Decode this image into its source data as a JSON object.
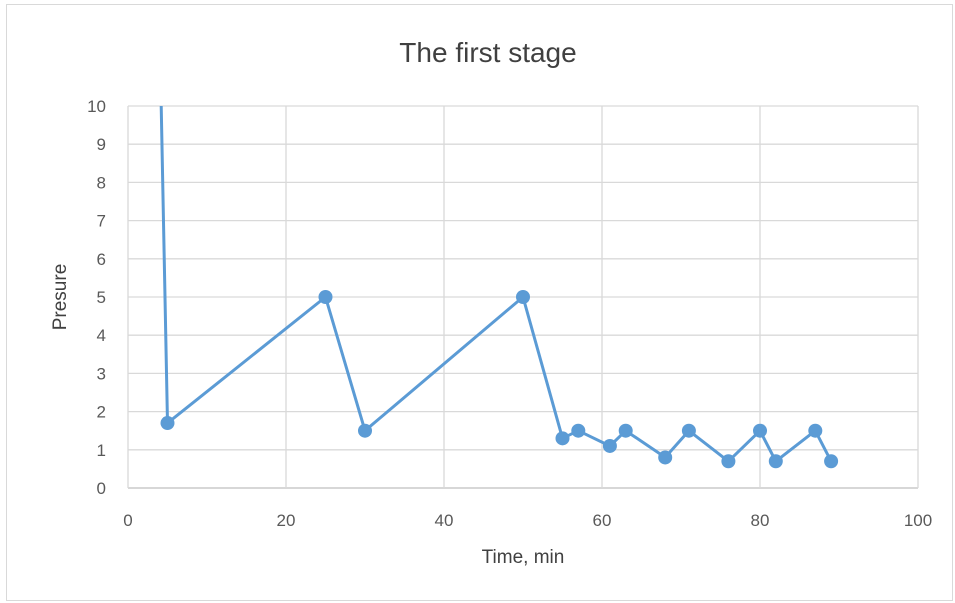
{
  "chart_data": {
    "type": "line",
    "title": "The first stage",
    "xlabel": "Time, min",
    "ylabel": "Presure",
    "xlim": [
      0,
      100
    ],
    "ylim": [
      0,
      10
    ],
    "xticks": [
      "0",
      "20",
      "40",
      "60",
      "80",
      "100"
    ],
    "yticks": [
      "0",
      "1",
      "2",
      "3",
      "4",
      "5",
      "6",
      "7",
      "8",
      "9",
      "10"
    ],
    "grid": true,
    "legend": "none",
    "series_color": "#5b9bd5",
    "line_start": {
      "x": 4.2,
      "y": 10
    },
    "series": [
      {
        "x": [
          5,
          25,
          30,
          50,
          55,
          57,
          61,
          63,
          68,
          71,
          76,
          80,
          82,
          87,
          89
        ],
        "y": [
          1.7,
          5,
          1.5,
          5,
          1.3,
          1.5,
          1.1,
          1.5,
          0.8,
          1.5,
          0.7,
          1.5,
          0.7,
          1.5,
          0.7
        ]
      }
    ]
  }
}
